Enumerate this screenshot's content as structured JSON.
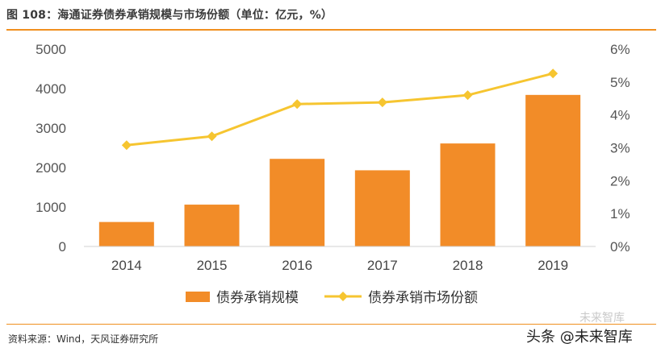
{
  "header": {
    "title": "图 108：海通证券债券承销规模与市场份额（单位：亿元，%）"
  },
  "chart_data": {
    "type": "bar+line",
    "categories": [
      "2014",
      "2015",
      "2016",
      "2017",
      "2018",
      "2019"
    ],
    "series": [
      {
        "name": "债券承销规模",
        "type": "bar",
        "axis": "left",
        "values": [
          620,
          1060,
          2220,
          1930,
          2610,
          3840
        ],
        "color": "#f28c28"
      },
      {
        "name": "债券承销市场份额",
        "type": "line",
        "axis": "right",
        "values": [
          3.08,
          3.35,
          4.33,
          4.38,
          4.6,
          5.26
        ],
        "color": "#f6c530"
      }
    ],
    "y_left": {
      "ticks": [
        "0",
        "1000",
        "2000",
        "3000",
        "4000",
        "5000"
      ],
      "range": [
        0,
        5000
      ]
    },
    "y_right": {
      "ticks": [
        "0%",
        "1%",
        "2%",
        "3%",
        "4%",
        "5%",
        "6%"
      ],
      "range": [
        0,
        6
      ]
    }
  },
  "footer": {
    "source": "资料来源：Wind，天风证券研究所",
    "watermark": "头条 @未来智库",
    "watermark_top": "未来智库"
  }
}
